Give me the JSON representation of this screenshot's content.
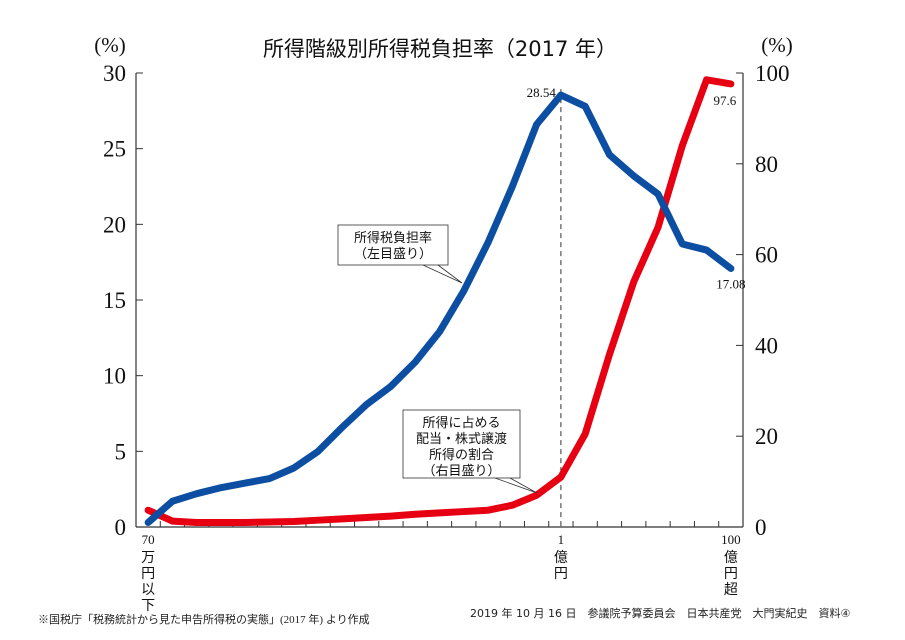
{
  "chart_data": {
    "type": "line",
    "title": "所得階級別所得税負担率（2017 年）",
    "ylabel_left": "(%)",
    "ylabel_right": "(%)",
    "ylim_left": [
      0,
      30
    ],
    "ylim_right": [
      0,
      100
    ],
    "yticks_left": [
      "0",
      "5",
      "10",
      "15",
      "20",
      "25",
      "30"
    ],
    "yticks_right": [
      "0",
      "20",
      "40",
      "60",
      "80",
      "100"
    ],
    "x_tick_labels": [
      {
        "index": 0,
        "top": "70",
        "lines": [
          "万",
          "円",
          "以",
          "下"
        ]
      },
      {
        "index": 17,
        "top": "1",
        "lines": [
          "億",
          "円"
        ]
      },
      {
        "index": 24,
        "top": "100",
        "lines": [
          "億",
          "円",
          "超"
        ]
      }
    ],
    "grid": false,
    "series": [
      {
        "axis": "left",
        "color": "#0b4ea2",
        "values": [
          0.3,
          1.7,
          2.2,
          2.6,
          2.9,
          3.2,
          3.9,
          5.0,
          6.6,
          8.1,
          9.3,
          10.9,
          12.9,
          15.6,
          18.8,
          22.5,
          26.6,
          28.54,
          27.8,
          24.6,
          23.2,
          22.0,
          18.7,
          18.3,
          17.08
        ]
      },
      {
        "axis": "right",
        "color": "#e60012",
        "values": [
          3.7,
          1.3,
          1.0,
          1.0,
          1.0,
          1.1,
          1.2,
          1.5,
          1.8,
          2.1,
          2.4,
          2.8,
          3.1,
          3.4,
          3.7,
          4.8,
          7.0,
          11.0,
          20.5,
          38.0,
          54.0,
          66.0,
          84.0,
          98.5,
          97.6
        ]
      }
    ],
    "annotations": {
      "peak_label": "28.54",
      "blue_end_label": "17.08",
      "red_end_label": "97.6",
      "marker_index": 17
    },
    "callouts": {
      "blue": [
        "所得税負担率",
        "（左目盛り）"
      ],
      "red": [
        "所得に占める",
        "配当・株式譲渡",
        "所得の割合",
        "（右目盛り）"
      ]
    }
  },
  "footer": {
    "source": "※国税庁「税務統計から見た申告所得税の実態」(2017 年) より作成",
    "credit": "2019 年 10 月 16 日　参議院予算委員会　日本共産党　大門実紀史　資料④"
  }
}
